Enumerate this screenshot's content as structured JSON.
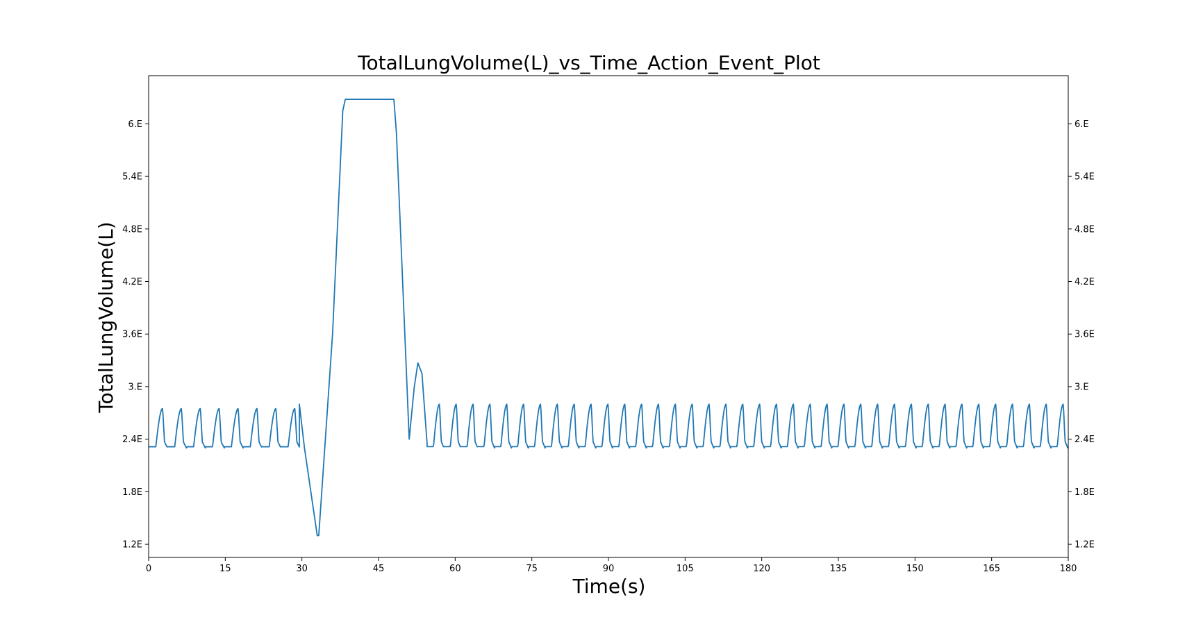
{
  "chart_data": {
    "type": "line",
    "title": "TotalLungVolume(L)_vs_Time_Action_Event_Plot",
    "xlabel": "Time(s)",
    "ylabel": "TotalLungVolume(L)",
    "xlim": [
      0,
      180
    ],
    "ylim": [
      1.05,
      6.55
    ],
    "x_ticks": [
      0,
      15,
      30,
      45,
      60,
      75,
      90,
      105,
      120,
      135,
      150,
      165,
      180
    ],
    "y_ticks": [
      1.2,
      1.8,
      2.4,
      3.0,
      3.6,
      4.2,
      4.8,
      5.4,
      6.0
    ],
    "y_tick_labels": [
      "1.2E",
      "1.8E",
      "2.4E",
      "3.E",
      "3.6E",
      "4.2E",
      "4.8E",
      "5.4E",
      "6.E"
    ],
    "y_ticks_mirrored_right": true,
    "grid": false,
    "series_color": "#1f77b4",
    "series": [
      {
        "breathing_segments": [
          {
            "x_start": 0,
            "x_end": 29.5,
            "period": 3.7,
            "baseline": 2.3,
            "peak": 2.75
          },
          {
            "x_start": 54.5,
            "x_end": 180,
            "period": 3.3,
            "baseline": 2.3,
            "peak": 2.8
          }
        ],
        "points": [
          [
            29.5,
            2.8
          ],
          [
            30.5,
            2.3
          ],
          [
            33.0,
            1.3
          ],
          [
            33.3,
            1.3
          ],
          [
            36.0,
            3.6
          ],
          [
            38.0,
            6.15
          ],
          [
            38.5,
            6.28
          ],
          [
            48.0,
            6.28
          ],
          [
            48.5,
            5.9
          ],
          [
            50.0,
            3.8
          ],
          [
            51.0,
            2.4
          ],
          [
            52.0,
            3.0
          ],
          [
            52.7,
            3.27
          ],
          [
            53.5,
            3.15
          ],
          [
            54.5,
            2.35
          ]
        ]
      }
    ]
  }
}
